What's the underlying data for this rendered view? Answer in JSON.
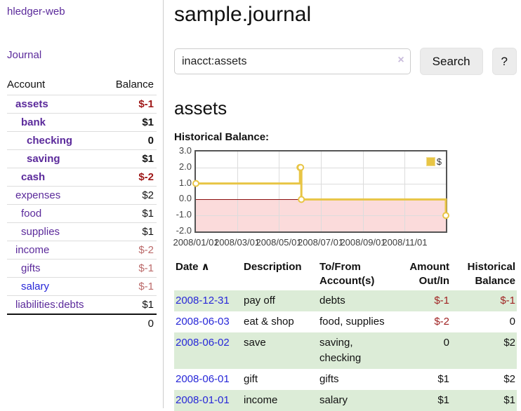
{
  "sidebar": {
    "brand": "hledger-web",
    "journal_link": "Journal",
    "accounts": {
      "headers": {
        "account": "Account",
        "balance": "Balance"
      },
      "rows": [
        {
          "name": "assets",
          "balance": "$-1",
          "level": 1,
          "bold": true,
          "bal_class": "neg-strong"
        },
        {
          "name": "bank",
          "balance": "$1",
          "level": 2,
          "bold": true,
          "bal_class": ""
        },
        {
          "name": "checking",
          "balance": "0",
          "level": 3,
          "bold": true,
          "bal_class": ""
        },
        {
          "name": "saving",
          "balance": "$1",
          "level": 3,
          "bold": true,
          "bal_class": ""
        },
        {
          "name": "cash",
          "balance": "$-2",
          "level": 2,
          "bold": true,
          "bal_class": "neg-strong"
        },
        {
          "name": "expenses",
          "balance": "$2",
          "level": 1,
          "bold": false,
          "bal_class": ""
        },
        {
          "name": "food",
          "balance": "$1",
          "level": 2,
          "bold": false,
          "bal_class": ""
        },
        {
          "name": "supplies",
          "balance": "$1",
          "level": 2,
          "bold": false,
          "bal_class": ""
        },
        {
          "name": "income",
          "balance": "$-2",
          "level": 1,
          "bold": false,
          "bal_class": "neg-soft"
        },
        {
          "name": "gifts",
          "balance": "$-1",
          "level": 2,
          "bold": false,
          "bal_class": "neg-soft"
        },
        {
          "name": "salary",
          "balance": "$-1",
          "level": 2,
          "bold": false,
          "bal_class": "neg-soft",
          "blue": true
        },
        {
          "name": "liabilities:debts",
          "balance": "$1",
          "level": 1,
          "bold": false,
          "bal_class": ""
        }
      ],
      "total": "0"
    }
  },
  "main": {
    "title": "sample.journal",
    "search": {
      "value": "inacct:assets",
      "clear_icon": "×",
      "button_label": "Search",
      "help_label": "?"
    },
    "account_heading": "assets",
    "chart_title": "Historical Balance:"
  },
  "chart_data": {
    "type": "line",
    "title": "Historical Balance:",
    "step": true,
    "legend": "$",
    "legend_position": "top-right",
    "grid": true,
    "ylim": [
      -2,
      3
    ],
    "y_ticks": [
      "3.0",
      "2.0",
      "1.0",
      "0.0",
      "-1.0",
      "-2.0"
    ],
    "y_tick_values": [
      3,
      2,
      1,
      0,
      -1,
      -2
    ],
    "x_ticks": [
      {
        "label": "2008/01/01",
        "f": 0.0
      },
      {
        "label": "2008/03/01",
        "f": 0.1644
      },
      {
        "label": "2008/05/01",
        "f": 0.3315
      },
      {
        "label": "2008/07/01",
        "f": 0.4986
      },
      {
        "label": "2008/09/01",
        "f": 0.6685
      },
      {
        "label": "2008/11/01",
        "f": 0.8356
      }
    ],
    "series": [
      {
        "name": "$",
        "dates": [
          "2008-01-01",
          "2008-06-01",
          "2008-06-02",
          "2008-06-03",
          "2008-12-31"
        ],
        "values": [
          1,
          2,
          2,
          0,
          -1
        ],
        "x": [
          0.0,
          0.4164,
          0.4192,
          0.4219,
          1.0
        ]
      }
    ],
    "colors": {
      "line": "#e8c545",
      "negative_fill": "#fbdbdb",
      "zero_line": "#8c1010"
    }
  },
  "register": {
    "columns": [
      {
        "lines": [
          "Date"
        ],
        "align": "left",
        "width": 97,
        "sort": "asc"
      },
      {
        "lines": [
          "Description"
        ],
        "align": "left",
        "width": 108
      },
      {
        "lines": [
          "To/From",
          "Account(s)"
        ],
        "align": "left",
        "width": 104
      },
      {
        "lines": [
          "Amount",
          "Out/In"
        ],
        "align": "right",
        "width": 85
      },
      {
        "lines": [
          "Historical",
          "Balance"
        ],
        "align": "right",
        "width": 94
      }
    ],
    "sort_icon": "∧",
    "rows": [
      {
        "date": "2008-12-31",
        "description": "pay off",
        "accounts": "debts",
        "amount": "$-1",
        "amount_neg": true,
        "balance": "$-1",
        "balance_neg": true
      },
      {
        "date": "2008-06-03",
        "description": "eat & shop",
        "accounts": "food, supplies",
        "amount": "$-2",
        "amount_neg": true,
        "balance": "0",
        "balance_neg": false
      },
      {
        "date": "2008-06-02",
        "description": "save",
        "accounts": "saving, checking",
        "amount": "0",
        "amount_neg": false,
        "balance": "$2",
        "balance_neg": false
      },
      {
        "date": "2008-06-01",
        "description": "gift",
        "accounts": "gifts",
        "amount": "$1",
        "amount_neg": false,
        "balance": "$2",
        "balance_neg": false
      },
      {
        "date": "2008-01-01",
        "description": "income",
        "accounts": "salary",
        "amount": "$1",
        "amount_neg": false,
        "balance": "$1",
        "balance_neg": false
      }
    ]
  }
}
